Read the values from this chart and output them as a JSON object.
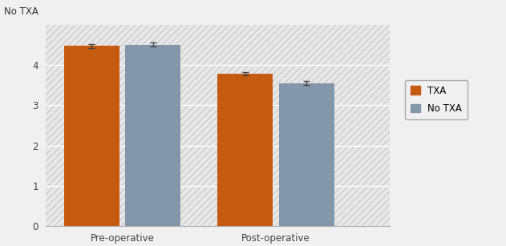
{
  "categories": [
    "Pre-operative",
    "Post-operative"
  ],
  "txa_values": [
    4.47,
    3.78
  ],
  "notxa_values": [
    4.5,
    3.55
  ],
  "txa_errors": [
    0.05,
    0.04
  ],
  "notxa_errors": [
    0.05,
    0.05
  ],
  "txa_color": "#C55A11",
  "notxa_color": "#8496AA",
  "background_color": "#F0F0F0",
  "plot_bg_color": "#FFFFFF",
  "ylim": [
    0,
    5
  ],
  "yticks": [
    0,
    1,
    2,
    3,
    4
  ],
  "top_label": "No TXA",
  "legend_labels": [
    "TXA",
    "No TXA"
  ],
  "bar_width": 0.18,
  "group_centers": [
    0.25,
    0.75
  ],
  "xlim": [
    0.0,
    1.12
  ]
}
